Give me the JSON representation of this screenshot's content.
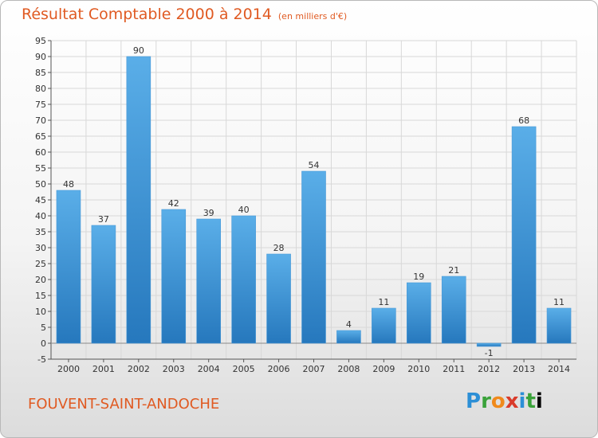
{
  "header": {
    "title": "Résultat Comptable 2000 à 2014",
    "subtitle": "(en milliers d'€)"
  },
  "footer": {
    "commune": "FOUVENT-SAINT-ANDOCHE",
    "logo_letters": [
      "P",
      "r",
      "o",
      "x",
      "i",
      "t",
      "i"
    ]
  },
  "colors": {
    "accent": "#e05a22",
    "bar_top": "#5aaee8",
    "bar_bottom": "#2678bd",
    "grid": "#d8d8d8"
  },
  "chart_data": {
    "type": "bar",
    "title": "Résultat Comptable 2000 à 2014",
    "subtitle": "(en milliers d'€)",
    "categories": [
      "2000",
      "2001",
      "2002",
      "2003",
      "2004",
      "2005",
      "2006",
      "2007",
      "2008",
      "2009",
      "2010",
      "2011",
      "2012",
      "2013",
      "2014"
    ],
    "values": [
      48,
      37,
      90,
      42,
      39,
      40,
      28,
      54,
      4,
      11,
      19,
      21,
      -1,
      68,
      11
    ],
    "ylim": [
      -5,
      95
    ],
    "yticks": [
      -5,
      0,
      5,
      10,
      15,
      20,
      25,
      30,
      35,
      40,
      45,
      50,
      55,
      60,
      65,
      70,
      75,
      80,
      85,
      90,
      95
    ],
    "grid": true,
    "legend": "none"
  }
}
